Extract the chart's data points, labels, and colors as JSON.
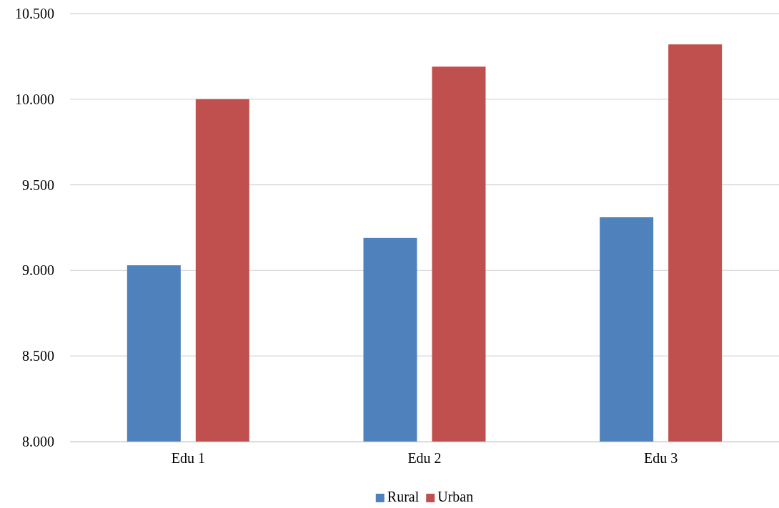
{
  "chart_data": {
    "type": "bar",
    "categories": [
      "Edu 1",
      "Edu 2",
      "Edu 3"
    ],
    "series": [
      {
        "name": "Rural",
        "color": "#4f81bd",
        "values": [
          9.03,
          9.19,
          9.31
        ]
      },
      {
        "name": "Urban",
        "color": "#c0504d",
        "values": [
          10.0,
          10.19,
          10.32
        ]
      }
    ],
    "ylim": [
      8,
      10.5
    ],
    "yticks": [
      {
        "value": 8,
        "label": "8.000"
      },
      {
        "value": 8.5,
        "label": "8.500"
      },
      {
        "value": 9,
        "label": "9.000"
      },
      {
        "value": 9.5,
        "label": "9.500"
      },
      {
        "value": 10,
        "label": "10.000"
      },
      {
        "value": 10.5,
        "label": "10.500"
      }
    ],
    "grid": "y",
    "legend": "bottom"
  }
}
